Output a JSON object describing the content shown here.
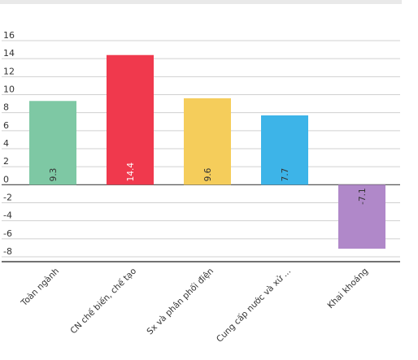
{
  "chart_data": {
    "type": "bar",
    "categories": [
      "Toàn ngành",
      "CN chế biến, chế tạo",
      "Sx và phân phối điện",
      "Cung cấp nước và xử ...",
      "Khai khoáng"
    ],
    "values": [
      9.3,
      14.4,
      9.6,
      7.7,
      -7.1
    ],
    "data_labels": [
      "9.3",
      "14.4",
      "9.6",
      "7.7",
      "-7.1"
    ],
    "colors": [
      "#7ec8a4",
      "#f0394d",
      "#f5cd5b",
      "#3db4e8",
      "#b088c9"
    ],
    "ylim": [
      -8,
      16
    ],
    "yticks": [
      16,
      14,
      12,
      10,
      8,
      6,
      4,
      2,
      0,
      -2,
      -4,
      -6,
      -8
    ],
    "grid": true,
    "title": "",
    "xlabel": "",
    "ylabel": ""
  }
}
